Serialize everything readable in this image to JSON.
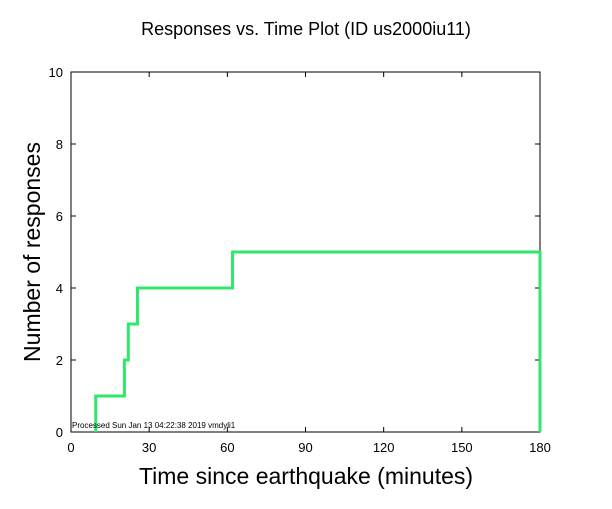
{
  "chart_data": {
    "type": "line",
    "title": "Responses vs. Time Plot (ID us2000iu11)",
    "xlabel": "Time since earthquake (minutes)",
    "ylabel": "Number of responses",
    "xlim": [
      0,
      180
    ],
    "ylim": [
      0,
      10
    ],
    "x_ticks": [
      0,
      30,
      60,
      90,
      120,
      150,
      180
    ],
    "y_ticks": [
      0,
      2,
      4,
      6,
      8,
      10
    ],
    "grid": false,
    "step": true,
    "series": [
      {
        "color": "#2fe86a",
        "x": [
          9.5,
          9.5,
          20.5,
          20.5,
          22,
          22,
          25.5,
          25.5,
          62,
          62,
          180,
          180
        ],
        "y": [
          0,
          1,
          1,
          2,
          2,
          3,
          3,
          4,
          4,
          5,
          5,
          0
        ]
      }
    ],
    "annotation": "Processed Sun Jan 13 04:22:38 2019 vmdyli1"
  }
}
